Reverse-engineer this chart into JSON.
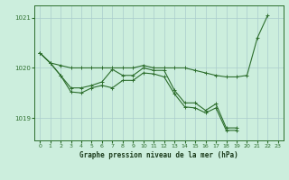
{
  "title": "Graphe pression niveau de la mer (hPa)",
  "bg_color": "#cceedd",
  "grid_color": "#aacccc",
  "line_color": "#2d6e2d",
  "xlim": [
    -0.5,
    23.5
  ],
  "ylim": [
    1018.55,
    1021.25
  ],
  "yticks": [
    1019,
    1020,
    1021
  ],
  "xtick_labels": [
    "0",
    "1",
    "2",
    "3",
    "4",
    "5",
    "6",
    "7",
    "8",
    "9",
    "10",
    "11",
    "12",
    "13",
    "14",
    "15",
    "16",
    "17",
    "18",
    "19",
    "20",
    "21",
    "22",
    "23"
  ],
  "line1_x": [
    0,
    1,
    2,
    3,
    4,
    5,
    6,
    7,
    8,
    9,
    10,
    11,
    12,
    13,
    14,
    15,
    16,
    17,
    18,
    19,
    20,
    21,
    22
  ],
  "line1_y": [
    1020.3,
    1020.1,
    1020.05,
    1020.0,
    1020.0,
    1020.0,
    1020.0,
    1020.0,
    1020.0,
    1020.0,
    1020.05,
    1020.0,
    1020.0,
    1020.0,
    1020.0,
    1019.95,
    1019.9,
    1019.85,
    1019.82,
    1019.82,
    1019.85,
    1020.6,
    1021.05
  ],
  "line2_x": [
    0,
    1,
    2,
    3,
    4,
    5,
    6,
    7,
    8,
    9,
    10,
    11,
    12,
    13,
    14,
    15,
    16,
    17,
    18,
    19
  ],
  "line2_y": [
    1020.3,
    1020.1,
    1019.85,
    1019.6,
    1019.6,
    1019.65,
    1019.72,
    1019.97,
    1019.85,
    1019.85,
    1020.0,
    1019.95,
    1019.95,
    1019.55,
    1019.3,
    1019.3,
    1019.15,
    1019.28,
    1018.8,
    1018.8
  ],
  "line3_x": [
    0,
    1,
    2,
    3,
    4,
    5,
    6,
    7,
    8,
    9,
    10,
    11,
    12,
    13,
    14,
    15,
    16,
    17,
    18,
    19
  ],
  "line3_y": [
    1020.3,
    1020.1,
    1019.85,
    1019.52,
    1019.5,
    1019.6,
    1019.65,
    1019.6,
    1019.75,
    1019.75,
    1019.9,
    1019.88,
    1019.82,
    1019.48,
    1019.22,
    1019.2,
    1019.1,
    1019.2,
    1018.75,
    1018.75
  ]
}
